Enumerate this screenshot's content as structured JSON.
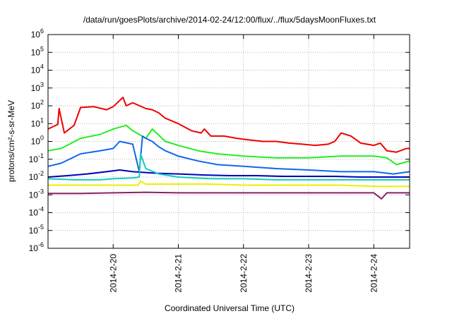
{
  "chart_data": {
    "type": "line",
    "title": "/data/run/goesPlots/archive/2014-02-24/12:00/flux/../flux/5daysMoonFluxes.txt",
    "xlabel": "Coordinated Universal Time (UTC)",
    "ylabel": "protons/cm²-s-sr-MeV",
    "y_scale": "log",
    "ylim_exponents": [
      -6,
      6
    ],
    "y_tick_base": "10",
    "y_tick_exponents": [
      -6,
      -5,
      -4,
      -3,
      -2,
      -1,
      0,
      1,
      2,
      3,
      4,
      5,
      6
    ],
    "x_range_days_feb_2014": [
      19.0,
      24.55
    ],
    "x_tick_labels": [
      "2014-2-20",
      "2014-2-21",
      "2014-2-22",
      "2014-2-23",
      "2014-2-24"
    ],
    "x_tick_dates": [
      20,
      21,
      22,
      23,
      24
    ],
    "grid": true,
    "series": [
      {
        "color": "#ee0000",
        "x": [
          19.0,
          19.15,
          19.17,
          19.25,
          19.4,
          19.5,
          19.7,
          19.9,
          20.0,
          20.15,
          20.2,
          20.3,
          20.5,
          20.6,
          20.7,
          20.8,
          21.0,
          21.2,
          21.35,
          21.4,
          21.5,
          21.7,
          21.9,
          22.1,
          22.3,
          22.5,
          22.7,
          22.9,
          23.1,
          23.3,
          23.4,
          23.5,
          23.65,
          23.8,
          24.0,
          24.1,
          24.2,
          24.35,
          24.5,
          24.55
        ],
        "values": [
          5,
          9,
          70,
          3,
          8,
          80,
          90,
          60,
          90,
          300,
          100,
          150,
          70,
          60,
          40,
          20,
          10,
          4,
          3,
          5,
          2,
          2,
          1.5,
          1.2,
          1.0,
          1.0,
          0.8,
          0.7,
          0.6,
          0.7,
          1.0,
          3,
          2,
          0.8,
          0.6,
          0.8,
          0.3,
          0.25,
          0.4,
          0.4
        ]
      },
      {
        "color": "#22ee22",
        "x": [
          19.0,
          19.2,
          19.5,
          19.8,
          20.0,
          20.2,
          20.3,
          20.5,
          20.6,
          20.8,
          21.0,
          21.3,
          21.6,
          22.0,
          22.5,
          23.0,
          23.5,
          24.0,
          24.2,
          24.35,
          24.55
        ],
        "values": [
          0.3,
          0.4,
          1.5,
          2.5,
          5,
          8,
          4,
          1.5,
          5,
          1.0,
          0.6,
          0.3,
          0.2,
          0.15,
          0.12,
          0.12,
          0.15,
          0.15,
          0.12,
          0.05,
          0.08
        ]
      },
      {
        "color": "#1166ee",
        "x": [
          19.0,
          19.2,
          19.5,
          19.8,
          20.0,
          20.1,
          20.3,
          20.4,
          20.45,
          20.5,
          20.6,
          20.7,
          20.8,
          21.0,
          21.3,
          21.6,
          22.0,
          22.5,
          23.0,
          23.5,
          24.0,
          24.3,
          24.55
        ],
        "values": [
          0.04,
          0.06,
          0.2,
          0.3,
          0.4,
          1.0,
          0.7,
          0.02,
          2.0,
          1.5,
          1.0,
          0.5,
          0.3,
          0.15,
          0.08,
          0.05,
          0.04,
          0.03,
          0.025,
          0.02,
          0.02,
          0.015,
          0.02
        ]
      },
      {
        "color": "#0000bb",
        "x": [
          19.0,
          19.3,
          19.6,
          19.9,
          20.1,
          20.3,
          20.5,
          20.7,
          21.0,
          21.4,
          21.8,
          22.2,
          22.6,
          23.0,
          23.4,
          23.8,
          24.2,
          24.55
        ],
        "values": [
          0.01,
          0.012,
          0.015,
          0.02,
          0.025,
          0.02,
          0.018,
          0.016,
          0.015,
          0.013,
          0.012,
          0.012,
          0.011,
          0.011,
          0.011,
          0.01,
          0.01,
          0.01
        ]
      },
      {
        "color": "#11ccbb",
        "x": [
          19.0,
          19.4,
          19.8,
          20.0,
          20.3,
          20.4,
          20.42,
          20.5,
          20.7,
          21.0,
          21.5,
          22.0,
          22.5,
          23.0,
          23.5,
          24.0,
          24.55
        ],
        "values": [
          0.008,
          0.007,
          0.007,
          0.008,
          0.009,
          0.01,
          0.2,
          0.03,
          0.015,
          0.01,
          0.008,
          0.008,
          0.007,
          0.007,
          0.007,
          0.007,
          0.007
        ]
      },
      {
        "color": "#eeee00",
        "x": [
          19.0,
          19.5,
          20.0,
          20.38,
          20.42,
          20.5,
          21.0,
          21.5,
          22.0,
          22.5,
          23.0,
          23.5,
          24.0,
          24.55
        ],
        "values": [
          0.0035,
          0.0035,
          0.0035,
          0.0035,
          0.006,
          0.004,
          0.004,
          0.004,
          0.0035,
          0.0035,
          0.0035,
          0.0035,
          0.003,
          0.003
        ]
      },
      {
        "color": "#882266",
        "x": [
          19.0,
          19.5,
          20.0,
          20.5,
          21.0,
          21.5,
          22.0,
          22.5,
          23.0,
          23.5,
          24.0,
          24.12,
          24.2,
          24.55
        ],
        "values": [
          0.0012,
          0.0012,
          0.0013,
          0.0014,
          0.0013,
          0.0013,
          0.0013,
          0.0013,
          0.0013,
          0.0013,
          0.0013,
          0.0006,
          0.0013,
          0.0013
        ]
      }
    ]
  }
}
